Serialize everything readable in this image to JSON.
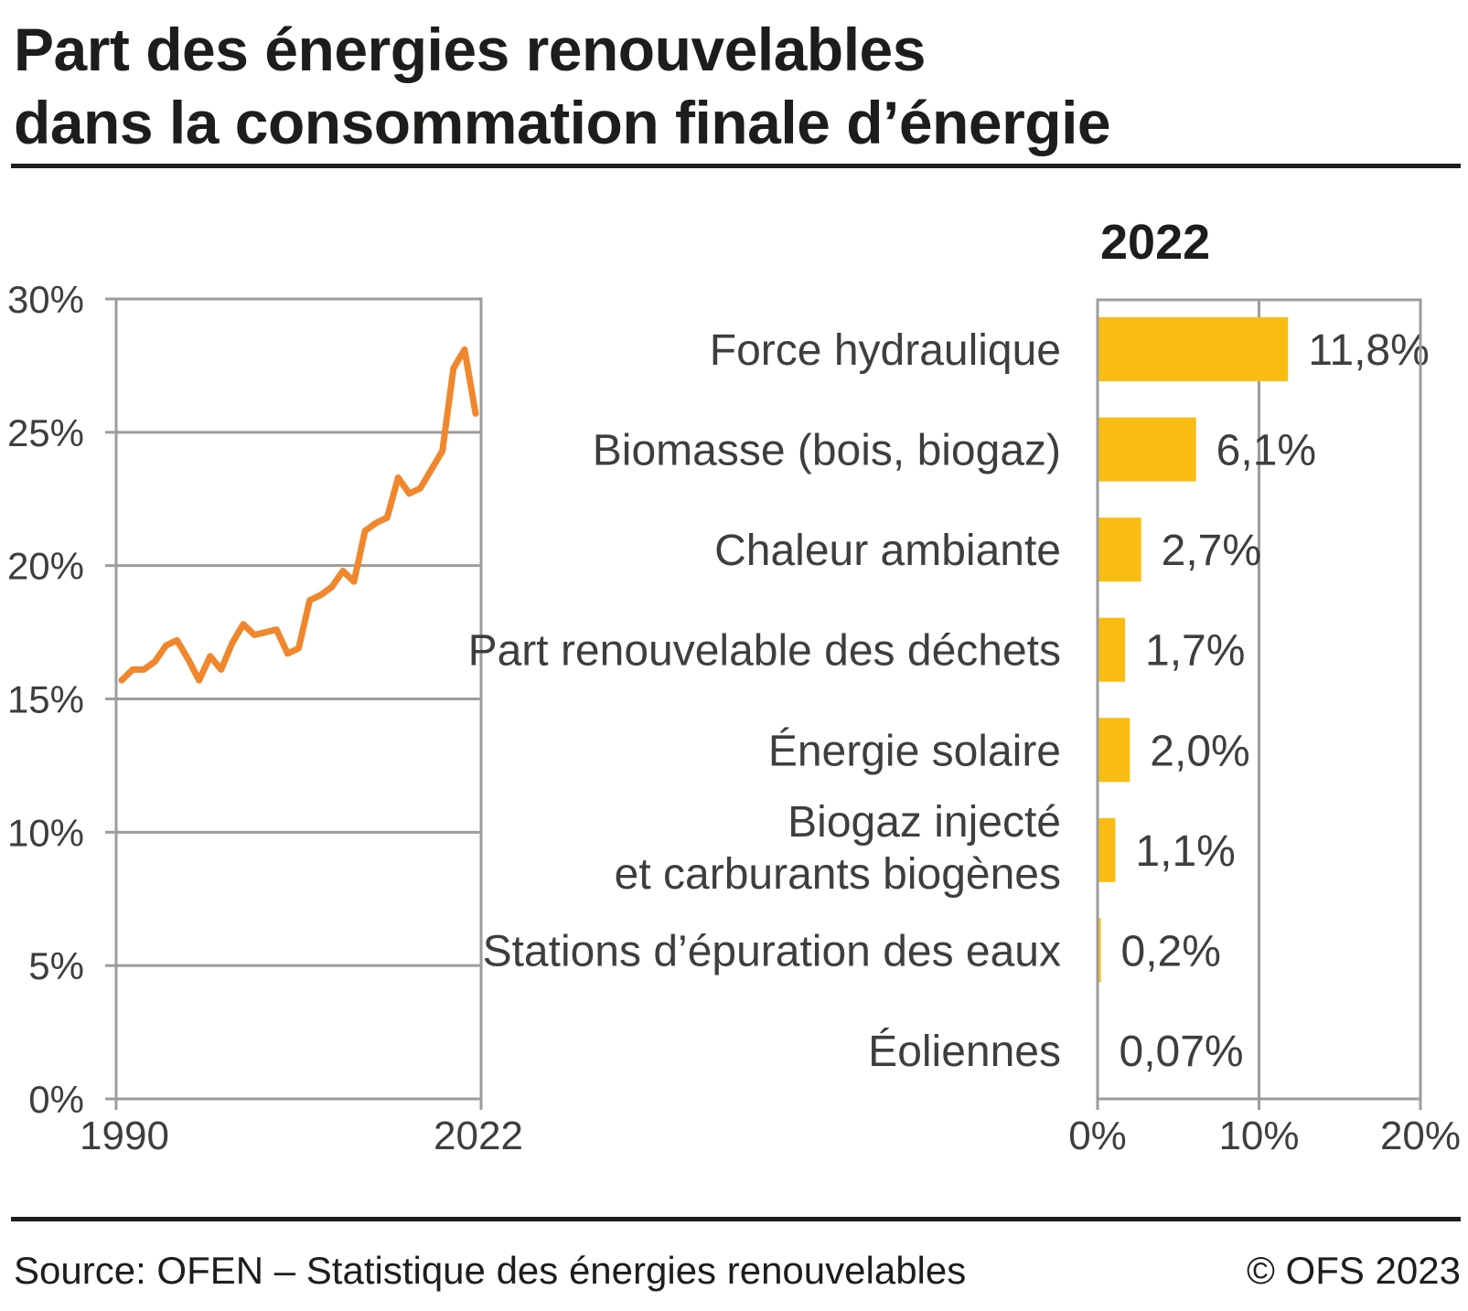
{
  "page": {
    "title_line1": "Part des énergies renouvelables",
    "title_line2": "dans la consommation finale d’énergie",
    "source": "Source: OFEN – Statistique des énergies renouvelables",
    "copyright": "© OFS 2023"
  },
  "colors": {
    "line": "#f0872d",
    "bar": "#fbbc12",
    "grid": "#9c9c9c",
    "axis_text": "#3e3e3e",
    "heading_text": "#1d1d1b"
  },
  "chart_data": [
    {
      "type": "line",
      "title": "",
      "series": [
        {
          "name": "Part des énergies renouvelables",
          "x": [
            1990,
            1991,
            1992,
            1993,
            1994,
            1995,
            1996,
            1997,
            1998,
            1999,
            2000,
            2001,
            2002,
            2003,
            2004,
            2005,
            2006,
            2007,
            2008,
            2009,
            2010,
            2011,
            2012,
            2013,
            2014,
            2015,
            2016,
            2017,
            2018,
            2019,
            2020,
            2021,
            2022
          ],
          "values": [
            15.7,
            16.1,
            16.1,
            16.4,
            17.0,
            17.2,
            16.5,
            15.7,
            16.6,
            16.1,
            17.1,
            17.8,
            17.4,
            17.5,
            17.6,
            16.7,
            16.9,
            18.7,
            18.9,
            19.2,
            19.8,
            19.4,
            21.3,
            21.6,
            21.8,
            23.3,
            22.7,
            22.9,
            23.6,
            24.3,
            27.4,
            28.1,
            25.7
          ]
        }
      ],
      "ylim": [
        0,
        30
      ],
      "ytick_step": 5,
      "ytick_labels": [
        "0%",
        "5%",
        "10%",
        "15%",
        "20%",
        "25%",
        "30%"
      ],
      "xtick_labels": [
        "1990",
        "2022"
      ],
      "grid": true,
      "legend": "none"
    },
    {
      "type": "bar",
      "orientation": "horizontal",
      "title": "2022",
      "categories": [
        "Force hydraulique",
        "Biomasse (bois, biogaz)",
        "Chaleur ambiante",
        "Part renouvelable des déchets",
        "Énergie solaire",
        "Biogaz injecté\net carburants biogènes",
        "Stations d’épuration des eaux",
        "Éoliennes"
      ],
      "values": [
        11.8,
        6.1,
        2.7,
        1.7,
        2.0,
        1.1,
        0.2,
        0.07
      ],
      "value_labels": [
        "11,8%",
        "6,1%",
        "2,7%",
        "1,7%",
        "2,0%",
        "1,1%",
        "0,2%",
        "0,07%"
      ],
      "xlim": [
        0,
        20
      ],
      "xticks": [
        0,
        10,
        20
      ],
      "xtick_labels": [
        "0%",
        "10%",
        "20%"
      ],
      "grid": true,
      "legend": "none"
    }
  ]
}
